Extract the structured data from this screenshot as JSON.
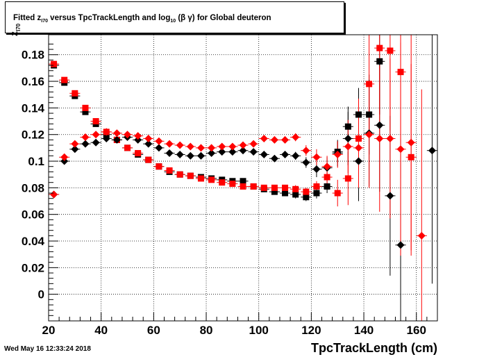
{
  "title": {
    "prefix": "Fitted  z",
    "sub1": "I70",
    "middle": "  versus TpcTrackLength and log",
    "sub2": "10",
    "suffix": " (β γ) for Global deuteron"
  },
  "timestamp": "Wed May 16 12:33:24 2018",
  "chart_data": {
    "type": "scatter",
    "title": "Fitted z_I70 versus TpcTrackLength and log10(βγ) for Global deuteron",
    "xlabel": "TpcTrackLength (cm)",
    "ylabel": "z_I70",
    "xlim": [
      20,
      168
    ],
    "ylim": [
      -0.02,
      0.195
    ],
    "x_ticks": [
      20,
      40,
      60,
      80,
      100,
      120,
      140,
      160
    ],
    "y_ticks": [
      0,
      0.02,
      0.04,
      0.06,
      0.08,
      0.1,
      0.12,
      0.14,
      0.16,
      0.18
    ],
    "grid": true,
    "series": [
      {
        "marker": "square",
        "color": "#000000",
        "points": [
          {
            "x": 22,
            "y": 0.172,
            "err": 0.002
          },
          {
            "x": 26,
            "y": 0.159,
            "err": 0.002
          },
          {
            "x": 30,
            "y": 0.149,
            "err": 0.002
          },
          {
            "x": 34,
            "y": 0.137,
            "err": 0.002
          },
          {
            "x": 38,
            "y": 0.128,
            "err": 0.002
          },
          {
            "x": 42,
            "y": 0.12,
            "err": 0.002
          },
          {
            "x": 46,
            "y": 0.116,
            "err": 0.002
          },
          {
            "x": 50,
            "y": 0.11,
            "err": 0.002
          },
          {
            "x": 54,
            "y": 0.105,
            "err": 0.002
          },
          {
            "x": 58,
            "y": 0.101,
            "err": 0.002
          },
          {
            "x": 62,
            "y": 0.096,
            "err": 0.002
          },
          {
            "x": 66,
            "y": 0.092,
            "err": 0.002
          },
          {
            "x": 70,
            "y": 0.09,
            "err": 0.002
          },
          {
            "x": 74,
            "y": 0.089,
            "err": 0.002
          },
          {
            "x": 78,
            "y": 0.088,
            "err": 0.002
          },
          {
            "x": 82,
            "y": 0.087,
            "err": 0.002
          },
          {
            "x": 86,
            "y": 0.086,
            "err": 0.002
          },
          {
            "x": 90,
            "y": 0.085,
            "err": 0.002
          },
          {
            "x": 94,
            "y": 0.085,
            "err": 0.002
          },
          {
            "x": 98,
            "y": 0.081,
            "err": 0.002
          },
          {
            "x": 102,
            "y": 0.079,
            "err": 0.002
          },
          {
            "x": 106,
            "y": 0.077,
            "err": 0.002
          },
          {
            "x": 110,
            "y": 0.076,
            "err": 0.002
          },
          {
            "x": 114,
            "y": 0.075,
            "err": 0.003
          },
          {
            "x": 118,
            "y": 0.073,
            "err": 0.003
          },
          {
            "x": 122,
            "y": 0.076,
            "err": 0.004
          },
          {
            "x": 126,
            "y": 0.081,
            "err": 0.005
          },
          {
            "x": 130,
            "y": 0.107,
            "err": 0.008
          },
          {
            "x": 134,
            "y": 0.126,
            "err": 0.015
          },
          {
            "x": 138,
            "y": 0.135,
            "err": 0.02
          },
          {
            "x": 142,
            "y": 0.135,
            "err": 0.03
          },
          {
            "x": 146,
            "y": 0.175,
            "err": 0.04
          }
        ]
      },
      {
        "marker": "square",
        "color": "#ff0000",
        "points": [
          {
            "x": 22,
            "y": 0.173,
            "err": 0.002
          },
          {
            "x": 26,
            "y": 0.161,
            "err": 0.002
          },
          {
            "x": 30,
            "y": 0.151,
            "err": 0.002
          },
          {
            "x": 34,
            "y": 0.14,
            "err": 0.002
          },
          {
            "x": 38,
            "y": 0.13,
            "err": 0.002
          },
          {
            "x": 42,
            "y": 0.122,
            "err": 0.002
          },
          {
            "x": 46,
            "y": 0.116,
            "err": 0.002
          },
          {
            "x": 50,
            "y": 0.11,
            "err": 0.002
          },
          {
            "x": 54,
            "y": 0.106,
            "err": 0.002
          },
          {
            "x": 58,
            "y": 0.101,
            "err": 0.002
          },
          {
            "x": 62,
            "y": 0.096,
            "err": 0.002
          },
          {
            "x": 66,
            "y": 0.093,
            "err": 0.002
          },
          {
            "x": 70,
            "y": 0.09,
            "err": 0.002
          },
          {
            "x": 74,
            "y": 0.089,
            "err": 0.002
          },
          {
            "x": 78,
            "y": 0.087,
            "err": 0.002
          },
          {
            "x": 82,
            "y": 0.086,
            "err": 0.002
          },
          {
            "x": 86,
            "y": 0.084,
            "err": 0.002
          },
          {
            "x": 90,
            "y": 0.083,
            "err": 0.002
          },
          {
            "x": 94,
            "y": 0.081,
            "err": 0.002
          },
          {
            "x": 98,
            "y": 0.081,
            "err": 0.002
          },
          {
            "x": 102,
            "y": 0.08,
            "err": 0.002
          },
          {
            "x": 106,
            "y": 0.08,
            "err": 0.002
          },
          {
            "x": 110,
            "y": 0.08,
            "err": 0.002
          },
          {
            "x": 114,
            "y": 0.079,
            "err": 0.003
          },
          {
            "x": 118,
            "y": 0.077,
            "err": 0.003
          },
          {
            "x": 122,
            "y": 0.081,
            "err": 0.004
          },
          {
            "x": 126,
            "y": 0.088,
            "err": 0.006
          },
          {
            "x": 130,
            "y": 0.076,
            "err": 0.01
          },
          {
            "x": 134,
            "y": 0.087,
            "err": 0.02
          },
          {
            "x": 138,
            "y": 0.117,
            "err": 0.03
          },
          {
            "x": 142,
            "y": 0.158,
            "err": 0.04
          },
          {
            "x": 146,
            "y": 0.185,
            "err": 0.05
          },
          {
            "x": 150,
            "y": 0.183,
            "err": 0.06
          },
          {
            "x": 154,
            "y": 0.167,
            "err": 0.08
          },
          {
            "x": 158,
            "y": 0.103,
            "err": 0.07
          }
        ]
      },
      {
        "marker": "diamond",
        "color": "#000000",
        "points": [
          {
            "x": 22,
            "y": 0.075,
            "err": 0.002
          },
          {
            "x": 26,
            "y": 0.1,
            "err": 0.002
          },
          {
            "x": 30,
            "y": 0.109,
            "err": 0.002
          },
          {
            "x": 34,
            "y": 0.113,
            "err": 0.002
          },
          {
            "x": 38,
            "y": 0.114,
            "err": 0.002
          },
          {
            "x": 42,
            "y": 0.117,
            "err": 0.002
          },
          {
            "x": 46,
            "y": 0.116,
            "err": 0.002
          },
          {
            "x": 50,
            "y": 0.118,
            "err": 0.002
          },
          {
            "x": 54,
            "y": 0.116,
            "err": 0.002
          },
          {
            "x": 58,
            "y": 0.113,
            "err": 0.002
          },
          {
            "x": 62,
            "y": 0.11,
            "err": 0.002
          },
          {
            "x": 66,
            "y": 0.106,
            "err": 0.002
          },
          {
            "x": 70,
            "y": 0.105,
            "err": 0.002
          },
          {
            "x": 74,
            "y": 0.104,
            "err": 0.002
          },
          {
            "x": 78,
            "y": 0.104,
            "err": 0.002
          },
          {
            "x": 82,
            "y": 0.106,
            "err": 0.002
          },
          {
            "x": 86,
            "y": 0.107,
            "err": 0.002
          },
          {
            "x": 90,
            "y": 0.107,
            "err": 0.002
          },
          {
            "x": 94,
            "y": 0.108,
            "err": 0.002
          },
          {
            "x": 98,
            "y": 0.107,
            "err": 0.002
          },
          {
            "x": 102,
            "y": 0.105,
            "err": 0.002
          },
          {
            "x": 106,
            "y": 0.102,
            "err": 0.002
          },
          {
            "x": 110,
            "y": 0.105,
            "err": 0.002
          },
          {
            "x": 114,
            "y": 0.104,
            "err": 0.003
          },
          {
            "x": 118,
            "y": 0.099,
            "err": 0.004
          },
          {
            "x": 122,
            "y": 0.094,
            "err": 0.006
          },
          {
            "x": 126,
            "y": 0.095,
            "err": 0.008
          },
          {
            "x": 130,
            "y": 0.106,
            "err": 0.01
          },
          {
            "x": 134,
            "y": 0.117,
            "err": 0.02
          },
          {
            "x": 138,
            "y": 0.1,
            "err": 0.03
          },
          {
            "x": 142,
            "y": 0.121,
            "err": 0.04
          },
          {
            "x": 146,
            "y": 0.127,
            "err": 0.05
          },
          {
            "x": 150,
            "y": 0.074,
            "err": 0.06
          },
          {
            "x": 154,
            "y": 0.037,
            "err": 0.08
          },
          {
            "x": 166,
            "y": 0.108,
            "err": 0.1
          }
        ]
      },
      {
        "marker": "diamond",
        "color": "#ff0000",
        "points": [
          {
            "x": 22,
            "y": 0.075,
            "err": 0.002
          },
          {
            "x": 26,
            "y": 0.103,
            "err": 0.002
          },
          {
            "x": 30,
            "y": 0.113,
            "err": 0.002
          },
          {
            "x": 34,
            "y": 0.118,
            "err": 0.002
          },
          {
            "x": 38,
            "y": 0.12,
            "err": 0.002
          },
          {
            "x": 42,
            "y": 0.122,
            "err": 0.002
          },
          {
            "x": 46,
            "y": 0.121,
            "err": 0.002
          },
          {
            "x": 50,
            "y": 0.12,
            "err": 0.002
          },
          {
            "x": 54,
            "y": 0.119,
            "err": 0.002
          },
          {
            "x": 58,
            "y": 0.117,
            "err": 0.002
          },
          {
            "x": 62,
            "y": 0.115,
            "err": 0.002
          },
          {
            "x": 66,
            "y": 0.113,
            "err": 0.002
          },
          {
            "x": 70,
            "y": 0.112,
            "err": 0.002
          },
          {
            "x": 74,
            "y": 0.111,
            "err": 0.002
          },
          {
            "x": 78,
            "y": 0.11,
            "err": 0.002
          },
          {
            "x": 82,
            "y": 0.11,
            "err": 0.002
          },
          {
            "x": 86,
            "y": 0.111,
            "err": 0.002
          },
          {
            "x": 90,
            "y": 0.111,
            "err": 0.002
          },
          {
            "x": 94,
            "y": 0.112,
            "err": 0.002
          },
          {
            "x": 98,
            "y": 0.113,
            "err": 0.002
          },
          {
            "x": 102,
            "y": 0.117,
            "err": 0.002
          },
          {
            "x": 106,
            "y": 0.116,
            "err": 0.002
          },
          {
            "x": 110,
            "y": 0.116,
            "err": 0.002
          },
          {
            "x": 114,
            "y": 0.118,
            "err": 0.003
          },
          {
            "x": 118,
            "y": 0.108,
            "err": 0.004
          },
          {
            "x": 122,
            "y": 0.103,
            "err": 0.006
          },
          {
            "x": 126,
            "y": 0.096,
            "err": 0.008
          },
          {
            "x": 130,
            "y": 0.105,
            "err": 0.01
          },
          {
            "x": 134,
            "y": 0.111,
            "err": 0.02
          },
          {
            "x": 138,
            "y": 0.11,
            "err": 0.03
          },
          {
            "x": 142,
            "y": 0.12,
            "err": 0.04
          },
          {
            "x": 146,
            "y": 0.117,
            "err": 0.055
          },
          {
            "x": 150,
            "y": 0.117,
            "err": 0.06
          },
          {
            "x": 154,
            "y": 0.109,
            "err": 0.08
          },
          {
            "x": 158,
            "y": 0.114,
            "err": 0.085
          },
          {
            "x": 162,
            "y": 0.044,
            "err": 0.11
          }
        ]
      }
    ]
  }
}
